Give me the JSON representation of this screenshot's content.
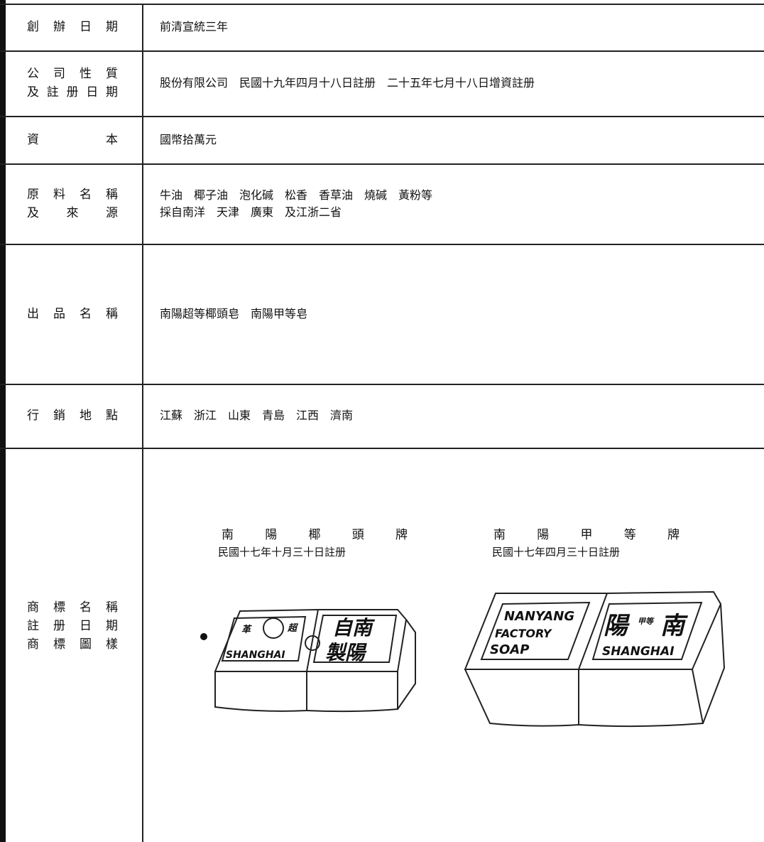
{
  "table": {
    "rows": [
      {
        "label": [
          "創辦日期"
        ],
        "value": [
          "前清宣統三年"
        ]
      },
      {
        "label": [
          "公司性質",
          "及註册日期"
        ],
        "value": [
          "股份有限公司　民國十九年四月十八日註册　二十五年七月十八日增資註册"
        ]
      },
      {
        "label": [
          "資本"
        ],
        "value": [
          "國幣拾萬元"
        ]
      },
      {
        "label": [
          "原料名稱",
          "及來源"
        ],
        "value": [
          "牛油　椰子油　泡化碱　松香　香草油　燒碱　黃粉等",
          "採自南洋　天津　廣東　及江浙二省"
        ]
      },
      {
        "label": [
          "出品名稱"
        ],
        "value": [
          "南陽超等椰頭皂　南陽甲等皂"
        ]
      },
      {
        "label": [
          "行銷地點"
        ],
        "value": [
          "江蘇　浙江　山東　青島　江西　濟南"
        ]
      }
    ],
    "trademarks": {
      "label": [
        "商標名稱",
        "註册日期",
        "商標圖樣"
      ],
      "items": [
        {
          "name": "南陽椰頭牌",
          "date": "民國十七年十月三十日註册",
          "marks": [
            "革",
            "超",
            "SHANGHAI",
            "自南",
            "製陽"
          ]
        },
        {
          "name": "南陽甲等牌",
          "date": "民國十七年四月三十日註册",
          "marks": [
            "NANYANG",
            "FACTORY",
            "SOAP",
            "陽",
            "甲等",
            "南",
            "SHANGHAI"
          ]
        }
      ]
    }
  }
}
